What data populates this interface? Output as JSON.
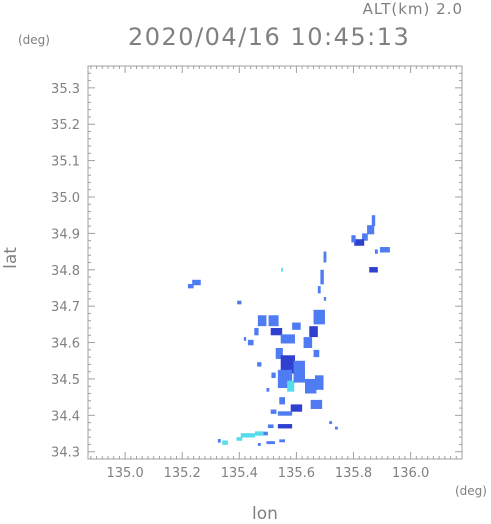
{
  "header": {
    "altitude_label": "ALT(km)  2.0",
    "datetime": "2020/04/16 10:45:13",
    "unit_y": "(deg)",
    "unit_x": "(deg)"
  },
  "chart_data": {
    "type": "heatmap",
    "title": "2020/04/16 10:45:13",
    "subtitle": "ALT(km)  2.0",
    "xlabel": "lon",
    "ylabel": "lat",
    "x_unit": "(deg)",
    "y_unit": "(deg)",
    "xlim": [
      134.87,
      136.18
    ],
    "ylim": [
      34.28,
      35.36
    ],
    "x_ticks": [
      135.0,
      135.2,
      135.4,
      135.6,
      135.8,
      136.0
    ],
    "x_tick_labels": [
      "135.0",
      "135.2",
      "135.4",
      "135.6",
      "135.8",
      "136.0"
    ],
    "y_ticks": [
      34.3,
      34.4,
      34.5,
      34.6,
      34.7,
      34.8,
      34.9,
      35.0,
      35.1,
      35.2,
      35.3
    ],
    "y_tick_labels": [
      "34.3",
      "34.4",
      "34.5",
      "34.6",
      "34.7",
      "34.8",
      "34.9",
      "35.0",
      "35.1",
      "35.2",
      "35.3"
    ],
    "grid": false,
    "colors": {
      "low": "#55ddee",
      "mid": "#4f7cf2",
      "high": "#2f3fd0",
      "frame": "#a0a0a0"
    },
    "cells": [
      {
        "lon": 135.87,
        "lat": 34.935,
        "w": 0.012,
        "h": 0.03,
        "level": "mid"
      },
      {
        "lon": 135.86,
        "lat": 34.91,
        "w": 0.025,
        "h": 0.025,
        "level": "mid"
      },
      {
        "lon": 135.84,
        "lat": 34.89,
        "w": 0.02,
        "h": 0.02,
        "level": "mid"
      },
      {
        "lon": 135.82,
        "lat": 34.875,
        "w": 0.035,
        "h": 0.018,
        "level": "high"
      },
      {
        "lon": 135.8,
        "lat": 34.885,
        "w": 0.015,
        "h": 0.02,
        "level": "mid"
      },
      {
        "lon": 135.91,
        "lat": 34.855,
        "w": 0.035,
        "h": 0.015,
        "level": "mid"
      },
      {
        "lon": 135.88,
        "lat": 34.85,
        "w": 0.01,
        "h": 0.012,
        "level": "mid"
      },
      {
        "lon": 135.87,
        "lat": 34.8,
        "w": 0.03,
        "h": 0.015,
        "level": "high"
      },
      {
        "lon": 135.7,
        "lat": 34.835,
        "w": 0.01,
        "h": 0.03,
        "level": "mid"
      },
      {
        "lon": 135.69,
        "lat": 34.78,
        "w": 0.012,
        "h": 0.04,
        "level": "mid"
      },
      {
        "lon": 135.68,
        "lat": 34.745,
        "w": 0.01,
        "h": 0.02,
        "level": "mid"
      },
      {
        "lon": 135.7,
        "lat": 34.72,
        "w": 0.008,
        "h": 0.01,
        "level": "mid"
      },
      {
        "lon": 135.55,
        "lat": 34.8,
        "w": 0.006,
        "h": 0.01,
        "level": "low"
      },
      {
        "lon": 135.25,
        "lat": 34.765,
        "w": 0.03,
        "h": 0.015,
        "level": "mid"
      },
      {
        "lon": 135.23,
        "lat": 34.755,
        "w": 0.02,
        "h": 0.012,
        "level": "mid"
      },
      {
        "lon": 135.4,
        "lat": 34.71,
        "w": 0.015,
        "h": 0.01,
        "level": "mid"
      },
      {
        "lon": 135.48,
        "lat": 34.66,
        "w": 0.03,
        "h": 0.03,
        "level": "mid"
      },
      {
        "lon": 135.52,
        "lat": 34.66,
        "w": 0.035,
        "h": 0.03,
        "level": "mid"
      },
      {
        "lon": 135.46,
        "lat": 34.63,
        "w": 0.015,
        "h": 0.02,
        "level": "mid"
      },
      {
        "lon": 135.53,
        "lat": 34.63,
        "w": 0.04,
        "h": 0.02,
        "level": "high"
      },
      {
        "lon": 135.57,
        "lat": 34.61,
        "w": 0.05,
        "h": 0.025,
        "level": "mid"
      },
      {
        "lon": 135.6,
        "lat": 34.645,
        "w": 0.03,
        "h": 0.02,
        "level": "mid"
      },
      {
        "lon": 135.68,
        "lat": 34.67,
        "w": 0.04,
        "h": 0.04,
        "level": "mid"
      },
      {
        "lon": 135.66,
        "lat": 34.63,
        "w": 0.03,
        "h": 0.03,
        "level": "high"
      },
      {
        "lon": 135.64,
        "lat": 34.6,
        "w": 0.03,
        "h": 0.03,
        "level": "mid"
      },
      {
        "lon": 135.67,
        "lat": 34.57,
        "w": 0.02,
        "h": 0.02,
        "level": "mid"
      },
      {
        "lon": 135.44,
        "lat": 34.6,
        "w": 0.02,
        "h": 0.015,
        "level": "mid"
      },
      {
        "lon": 135.42,
        "lat": 34.61,
        "w": 0.008,
        "h": 0.01,
        "level": "mid"
      },
      {
        "lon": 135.54,
        "lat": 34.57,
        "w": 0.025,
        "h": 0.03,
        "level": "mid"
      },
      {
        "lon": 135.57,
        "lat": 34.54,
        "w": 0.05,
        "h": 0.05,
        "level": "high"
      },
      {
        "lon": 135.56,
        "lat": 34.5,
        "w": 0.05,
        "h": 0.05,
        "level": "mid"
      },
      {
        "lon": 135.58,
        "lat": 34.48,
        "w": 0.025,
        "h": 0.03,
        "level": "low"
      },
      {
        "lon": 135.61,
        "lat": 34.52,
        "w": 0.04,
        "h": 0.06,
        "level": "mid"
      },
      {
        "lon": 135.65,
        "lat": 34.48,
        "w": 0.04,
        "h": 0.04,
        "level": "mid"
      },
      {
        "lon": 135.68,
        "lat": 34.49,
        "w": 0.03,
        "h": 0.04,
        "level": "mid"
      },
      {
        "lon": 135.67,
        "lat": 34.43,
        "w": 0.04,
        "h": 0.025,
        "level": "mid"
      },
      {
        "lon": 135.47,
        "lat": 34.54,
        "w": 0.015,
        "h": 0.012,
        "level": "mid"
      },
      {
        "lon": 135.52,
        "lat": 34.51,
        "w": 0.015,
        "h": 0.015,
        "level": "mid"
      },
      {
        "lon": 135.5,
        "lat": 34.47,
        "w": 0.01,
        "h": 0.01,
        "level": "mid"
      },
      {
        "lon": 135.55,
        "lat": 34.44,
        "w": 0.02,
        "h": 0.02,
        "level": "mid"
      },
      {
        "lon": 135.6,
        "lat": 34.42,
        "w": 0.04,
        "h": 0.02,
        "level": "high"
      },
      {
        "lon": 135.56,
        "lat": 34.405,
        "w": 0.05,
        "h": 0.012,
        "level": "mid"
      },
      {
        "lon": 135.52,
        "lat": 34.41,
        "w": 0.02,
        "h": 0.012,
        "level": "mid"
      },
      {
        "lon": 135.72,
        "lat": 34.38,
        "w": 0.01,
        "h": 0.008,
        "level": "mid"
      },
      {
        "lon": 135.56,
        "lat": 34.37,
        "w": 0.05,
        "h": 0.012,
        "level": "high"
      },
      {
        "lon": 135.51,
        "lat": 34.37,
        "w": 0.02,
        "h": 0.01,
        "level": "mid"
      },
      {
        "lon": 135.49,
        "lat": 34.35,
        "w": 0.02,
        "h": 0.01,
        "level": "mid"
      },
      {
        "lon": 135.43,
        "lat": 34.345,
        "w": 0.05,
        "h": 0.012,
        "level": "low"
      },
      {
        "lon": 135.47,
        "lat": 34.35,
        "w": 0.03,
        "h": 0.012,
        "level": "low"
      },
      {
        "lon": 135.4,
        "lat": 34.335,
        "w": 0.02,
        "h": 0.01,
        "level": "low"
      },
      {
        "lon": 135.35,
        "lat": 34.325,
        "w": 0.02,
        "h": 0.012,
        "level": "low"
      },
      {
        "lon": 135.33,
        "lat": 34.33,
        "w": 0.01,
        "h": 0.01,
        "level": "mid"
      },
      {
        "lon": 135.51,
        "lat": 34.325,
        "w": 0.03,
        "h": 0.008,
        "level": "mid"
      },
      {
        "lon": 135.55,
        "lat": 34.33,
        "w": 0.02,
        "h": 0.008,
        "level": "mid"
      },
      {
        "lon": 135.47,
        "lat": 34.32,
        "w": 0.01,
        "h": 0.008,
        "level": "mid"
      },
      {
        "lon": 135.74,
        "lat": 34.365,
        "w": 0.01,
        "h": 0.008,
        "level": "mid"
      }
    ]
  }
}
